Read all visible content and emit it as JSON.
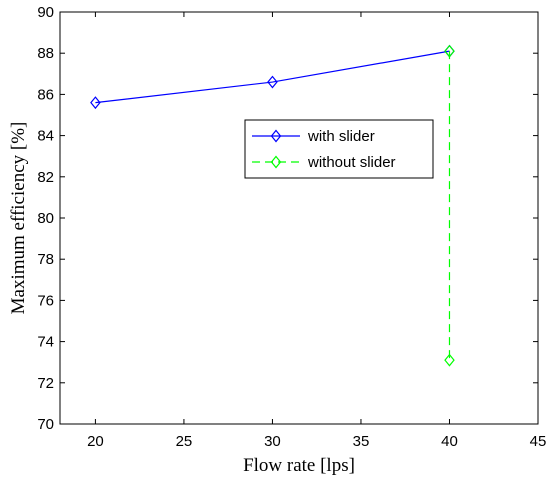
{
  "chart_data": {
    "type": "line",
    "xlabel": "Flow rate [lps]",
    "ylabel": "Maximum efficiency [%]",
    "xlim": [
      18,
      45
    ],
    "ylim": [
      70,
      90
    ],
    "xticks": [
      20,
      25,
      30,
      35,
      40,
      45
    ],
    "yticks": [
      70,
      72,
      74,
      76,
      78,
      80,
      82,
      84,
      86,
      88,
      90
    ],
    "grid": false,
    "legend_position": "center-right",
    "series": [
      {
        "name": "with slider",
        "color": "#0000ff",
        "line_style": "solid",
        "marker": "diamond",
        "x": [
          20,
          30,
          40
        ],
        "y": [
          85.6,
          86.6,
          88.1
        ]
      },
      {
        "name": "without slider",
        "color": "#00ff00",
        "line_style": "dashed",
        "marker": "diamond",
        "x": [
          40,
          40
        ],
        "y": [
          88.1,
          73.1
        ]
      }
    ]
  }
}
